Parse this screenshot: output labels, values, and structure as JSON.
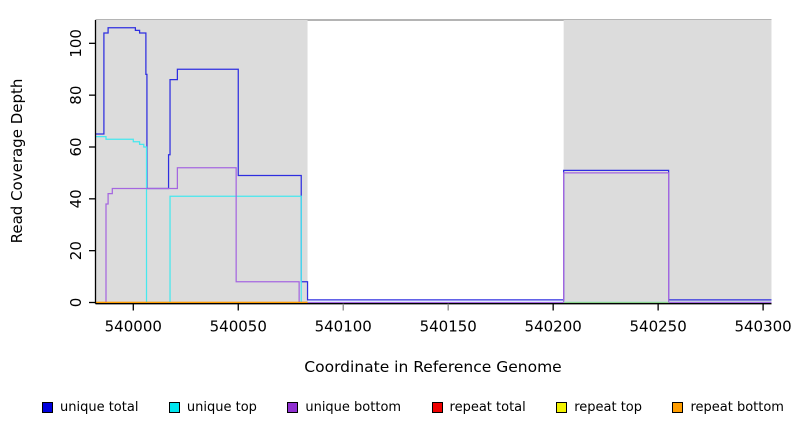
{
  "chart_data": {
    "type": "line",
    "title": "",
    "xlabel": "Coordinate in Reference Genome",
    "ylabel": "Read Coverage Depth",
    "xlim": [
      539982,
      540304
    ],
    "ylim": [
      0,
      109
    ],
    "x_ticks": [
      540000,
      540050,
      540100,
      540150,
      540200,
      540250,
      540300
    ],
    "y_ticks": [
      0,
      20,
      40,
      60,
      80,
      100
    ],
    "grid": false,
    "plot_background": "#ffffff",
    "gray_tick_marks": [
      540100,
      540150
    ],
    "top_border_color": "#9b9b9b",
    "shaded_regions": [
      {
        "name": "repeat-region-left",
        "x0": 539982,
        "x1": 540083,
        "color": "#dcdcdc"
      },
      {
        "name": "repeat-region-right",
        "x0": 540205,
        "x1": 540304,
        "color": "#dcdcdc"
      }
    ],
    "series": [
      {
        "name": "unique total",
        "color": "#2e2ee0",
        "segments": [
          {
            "points": [
              [
                539982,
                65
              ],
              [
                539986,
                65
              ],
              [
                539986,
                104
              ],
              [
                539988,
                104
              ],
              [
                539988,
                106
              ],
              [
                540001,
                106
              ],
              [
                540001,
                105
              ],
              [
                540003,
                105
              ],
              [
                540003,
                104
              ],
              [
                540006,
                104
              ],
              [
                540006,
                88
              ],
              [
                540006.5,
                88
              ],
              [
                540006.5,
                44
              ],
              [
                540016.8,
                44
              ],
              [
                540016.8,
                57
              ],
              [
                540017.5,
                57
              ],
              [
                540017.5,
                86
              ],
              [
                540021,
                86
              ],
              [
                540021,
                90
              ],
              [
                540050,
                90
              ],
              [
                540050,
                49
              ],
              [
                540080,
                49
              ],
              [
                540080,
                8
              ],
              [
                540083,
                8
              ],
              [
                540083,
                1
              ],
              [
                540205,
                1
              ],
              [
                540205,
                51
              ],
              [
                540255,
                51
              ],
              [
                540255,
                1
              ],
              [
                540304,
                1
              ]
            ]
          }
        ]
      },
      {
        "name": "unique top",
        "color": "#45e8ee",
        "segments": [
          {
            "points": [
              [
                539982,
                64
              ],
              [
                539987,
                64
              ],
              [
                539987,
                63
              ],
              [
                540000,
                63
              ],
              [
                540000,
                62
              ],
              [
                540003,
                62
              ],
              [
                540003,
                61
              ],
              [
                540005,
                61
              ],
              [
                540005,
                60
              ],
              [
                540006.3,
                60
              ],
              [
                540006.3,
                0
              ],
              [
                540017.5,
                0
              ],
              [
                540017.5,
                41
              ],
              [
                540080,
                41
              ],
              [
                540080,
                0
              ],
              [
                540304,
                0
              ]
            ]
          }
        ]
      },
      {
        "name": "unique bottom",
        "color": "#a567e0",
        "segments": [
          {
            "points": [
              [
                539987,
                0
              ],
              [
                539987,
                38
              ],
              [
                539988,
                38
              ],
              [
                539988,
                42
              ],
              [
                539990,
                42
              ],
              [
                539990,
                44
              ],
              [
                540021,
                44
              ],
              [
                540021,
                52
              ],
              [
                540049,
                52
              ],
              [
                540049,
                8
              ],
              [
                540079,
                8
              ],
              [
                540079,
                0
              ],
              [
                540205,
                0
              ],
              [
                540205,
                50
              ],
              [
                540255,
                50
              ],
              [
                540255,
                0
              ],
              [
                540304,
                0
              ]
            ]
          }
        ]
      },
      {
        "name": "repeat total",
        "color": "#e60000",
        "segments": [
          {
            "points": [
              [
                539982,
                0
              ],
              [
                540083,
                0
              ]
            ]
          }
        ]
      },
      {
        "name": "repeat top",
        "color": "#f2f200",
        "segments": [
          {
            "points": [
              [
                539982,
                0
              ],
              [
                540083,
                0
              ]
            ]
          },
          {
            "points": [
              [
                540205,
                0
              ],
              [
                540255,
                0
              ]
            ],
            "render_color": "#8cd48c"
          }
        ]
      },
      {
        "name": "repeat bottom",
        "color": "#ff9d00",
        "segments": [
          {
            "points": [
              [
                539982,
                0
              ],
              [
                540083,
                0
              ]
            ]
          }
        ]
      }
    ],
    "legend_position": "bottom"
  },
  "legend": {
    "items": [
      {
        "label": "unique total",
        "color": "#0000dd"
      },
      {
        "label": "unique top",
        "color": "#00e5ee"
      },
      {
        "label": "unique bottom",
        "color": "#8f2fd0"
      },
      {
        "label": "repeat total",
        "color": "#ee0000"
      },
      {
        "label": "repeat top",
        "color": "#f2f200"
      },
      {
        "label": "repeat bottom",
        "color": "#ff9d00"
      }
    ]
  }
}
